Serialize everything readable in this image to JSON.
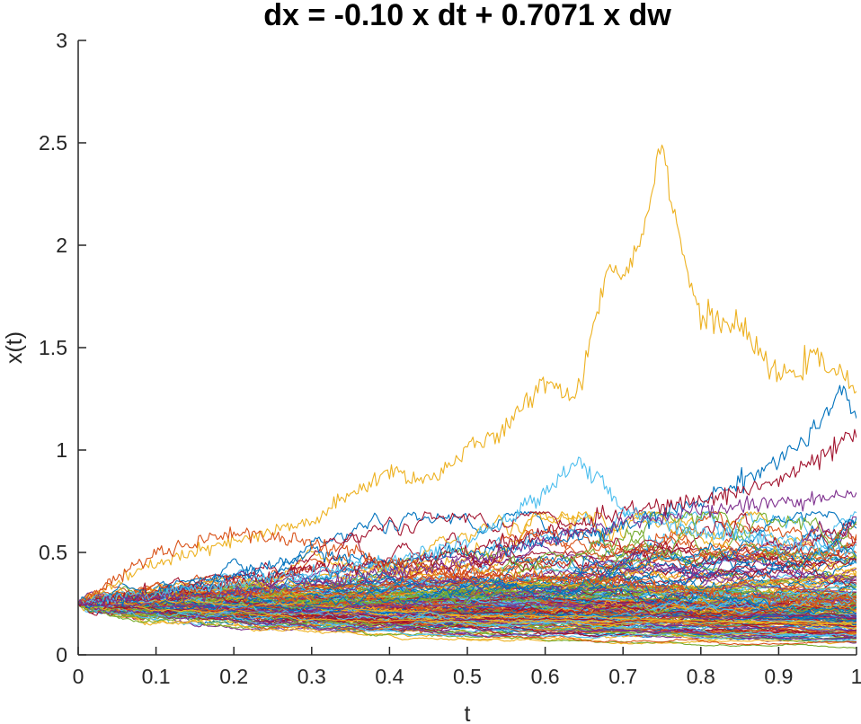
{
  "chart_data": {
    "type": "line",
    "title": "dx = -0.10 x dt + 0.7071 x dw",
    "xlabel": "t",
    "ylabel": "x(t)",
    "xlim": [
      0,
      1
    ],
    "ylim": [
      0,
      3
    ],
    "x_ticks": [
      "0",
      "0.1",
      "0.2",
      "0.3",
      "0.4",
      "0.5",
      "0.6",
      "0.7",
      "0.8",
      "0.9",
      "1"
    ],
    "y_ticks": [
      "0",
      "0.5",
      "1",
      "1.5",
      "2",
      "2.5",
      "3"
    ],
    "grid": false,
    "legend": "none",
    "initial_value": 0.25,
    "path_count": 200,
    "colors": [
      "#0072BD",
      "#D95319",
      "#EDB120",
      "#7E2F8E",
      "#77AC30",
      "#4DBEEE",
      "#A2142F"
    ],
    "highlighted_paths": [
      {
        "color": "#EDB120",
        "x": [
          0,
          0.05,
          0.1,
          0.15,
          0.2,
          0.25,
          0.3,
          0.35,
          0.4,
          0.45,
          0.5,
          0.55,
          0.6,
          0.64,
          0.68,
          0.7,
          0.72,
          0.75,
          0.78,
          0.8,
          0.85,
          0.9,
          0.95,
          1.0
        ],
        "y": [
          0.25,
          0.35,
          0.45,
          0.5,
          0.55,
          0.6,
          0.65,
          0.78,
          0.9,
          0.85,
          1.0,
          1.1,
          1.35,
          1.25,
          1.9,
          1.85,
          2.0,
          2.5,
          1.9,
          1.65,
          1.6,
          1.35,
          1.45,
          1.3
        ]
      },
      {
        "color": "#0072BD",
        "x": [
          0,
          0.1,
          0.2,
          0.3,
          0.4,
          0.5,
          0.6,
          0.7,
          0.8,
          0.85,
          0.9,
          0.95,
          0.98,
          1.0
        ],
        "y": [
          0.25,
          0.3,
          0.38,
          0.5,
          0.45,
          0.5,
          0.55,
          0.62,
          0.75,
          0.85,
          0.95,
          1.1,
          1.3,
          1.12
        ]
      },
      {
        "color": "#A2142F",
        "x": [
          0,
          0.1,
          0.2,
          0.3,
          0.4,
          0.5,
          0.6,
          0.7,
          0.8,
          0.9,
          0.95,
          1.0
        ],
        "y": [
          0.25,
          0.3,
          0.35,
          0.42,
          0.45,
          0.5,
          0.6,
          0.7,
          0.75,
          0.85,
          0.95,
          1.08
        ]
      },
      {
        "color": "#4DBEEE",
        "x": [
          0,
          0.1,
          0.2,
          0.3,
          0.4,
          0.5,
          0.55,
          0.6,
          0.64,
          0.67,
          0.7,
          0.8,
          0.9,
          1.0
        ],
        "y": [
          0.25,
          0.3,
          0.35,
          0.4,
          0.45,
          0.55,
          0.65,
          0.8,
          0.95,
          0.85,
          0.7,
          0.6,
          0.55,
          0.5
        ]
      },
      {
        "color": "#D95319",
        "x": [
          0,
          0.1,
          0.2,
          0.3,
          0.4,
          0.5,
          0.6,
          0.7,
          0.8,
          0.9,
          1.0
        ],
        "y": [
          0.25,
          0.5,
          0.6,
          0.55,
          0.45,
          0.4,
          0.38,
          0.35,
          0.3,
          0.28,
          0.25
        ]
      },
      {
        "color": "#7E2F8E",
        "x": [
          0,
          0.1,
          0.2,
          0.3,
          0.4,
          0.5,
          0.6,
          0.7,
          0.8,
          0.9,
          1.0
        ],
        "y": [
          0.25,
          0.28,
          0.3,
          0.35,
          0.4,
          0.45,
          0.55,
          0.65,
          0.7,
          0.75,
          0.76
        ]
      }
    ]
  }
}
